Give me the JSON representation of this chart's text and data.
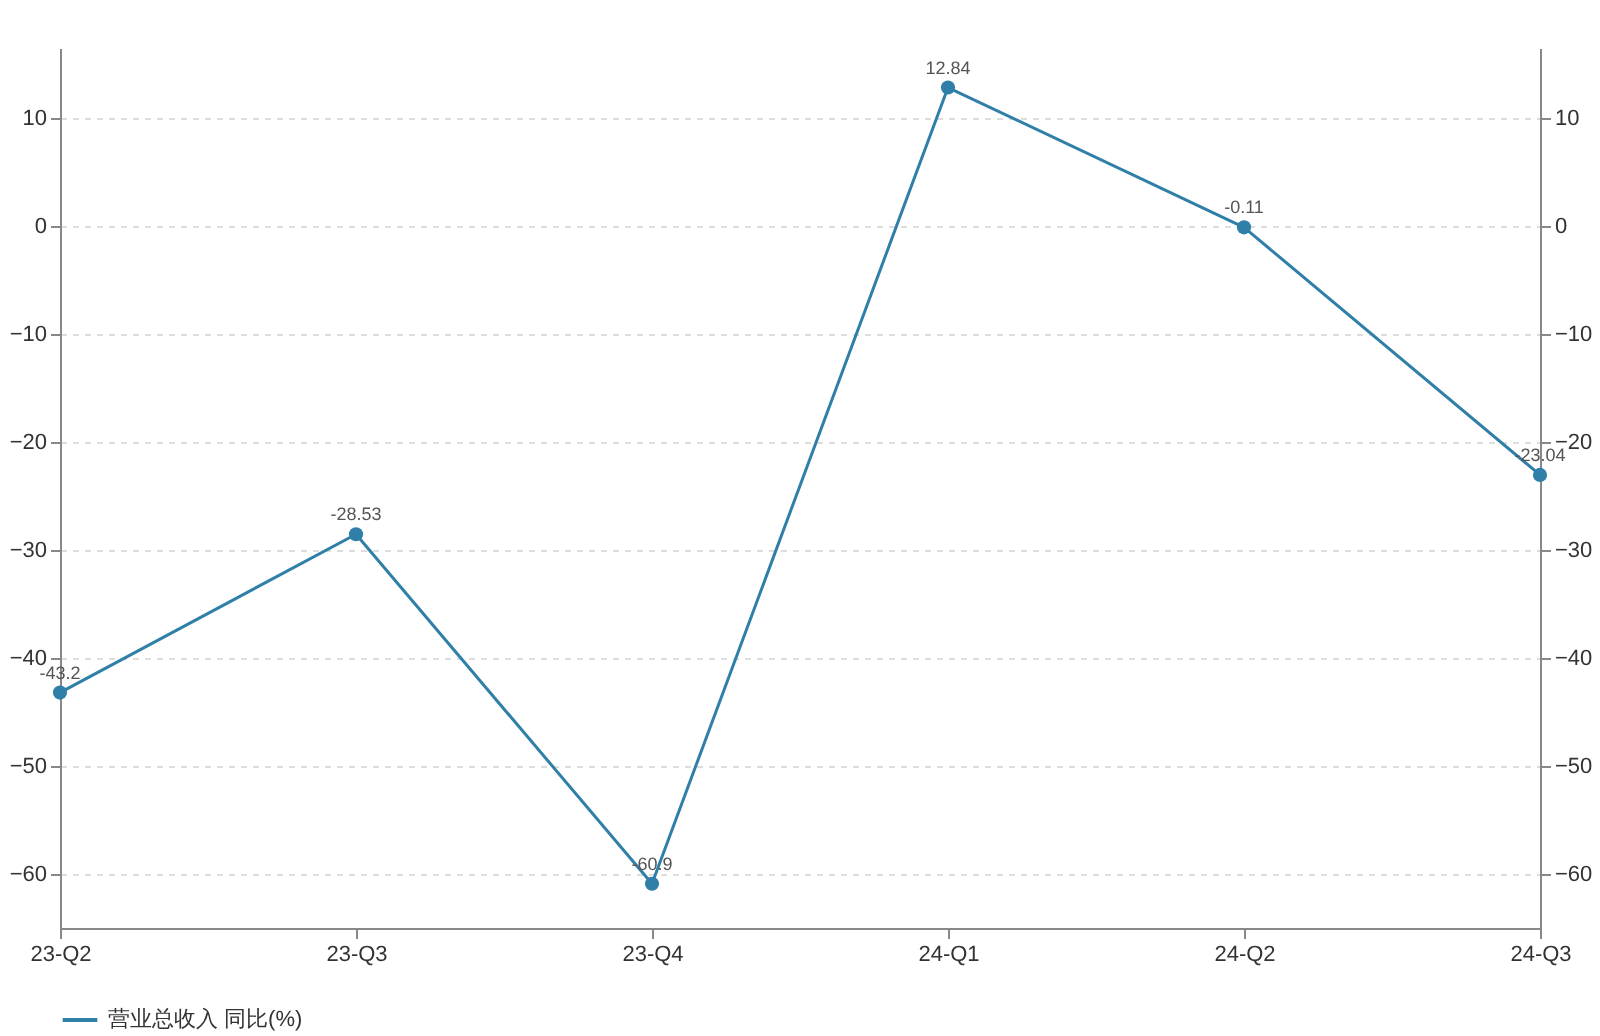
{
  "chart_data": {
    "type": "line",
    "categories": [
      "23-Q2",
      "23-Q3",
      "23-Q4",
      "24-Q1",
      "24-Q2",
      "24-Q3"
    ],
    "series": [
      {
        "name": "营业总收入 同比(%)",
        "color": "#2f7fa8",
        "values": [
          -43.2,
          -28.53,
          -60.9,
          12.84,
          -0.11,
          -23.04
        ]
      }
    ],
    "ylim": [
      -65,
      16.5
    ],
    "yticks": [
      -60,
      -50,
      -40,
      -30,
      -20,
      -10,
      0,
      10
    ],
    "y2lim": [
      -65,
      16.5
    ],
    "y2ticks": [
      -60,
      -50,
      -40,
      -30,
      -20,
      -10,
      0,
      10
    ],
    "grid": "y",
    "legend": "bottom",
    "marker": "circle",
    "line_style": "solid",
    "data_labels": true
  }
}
